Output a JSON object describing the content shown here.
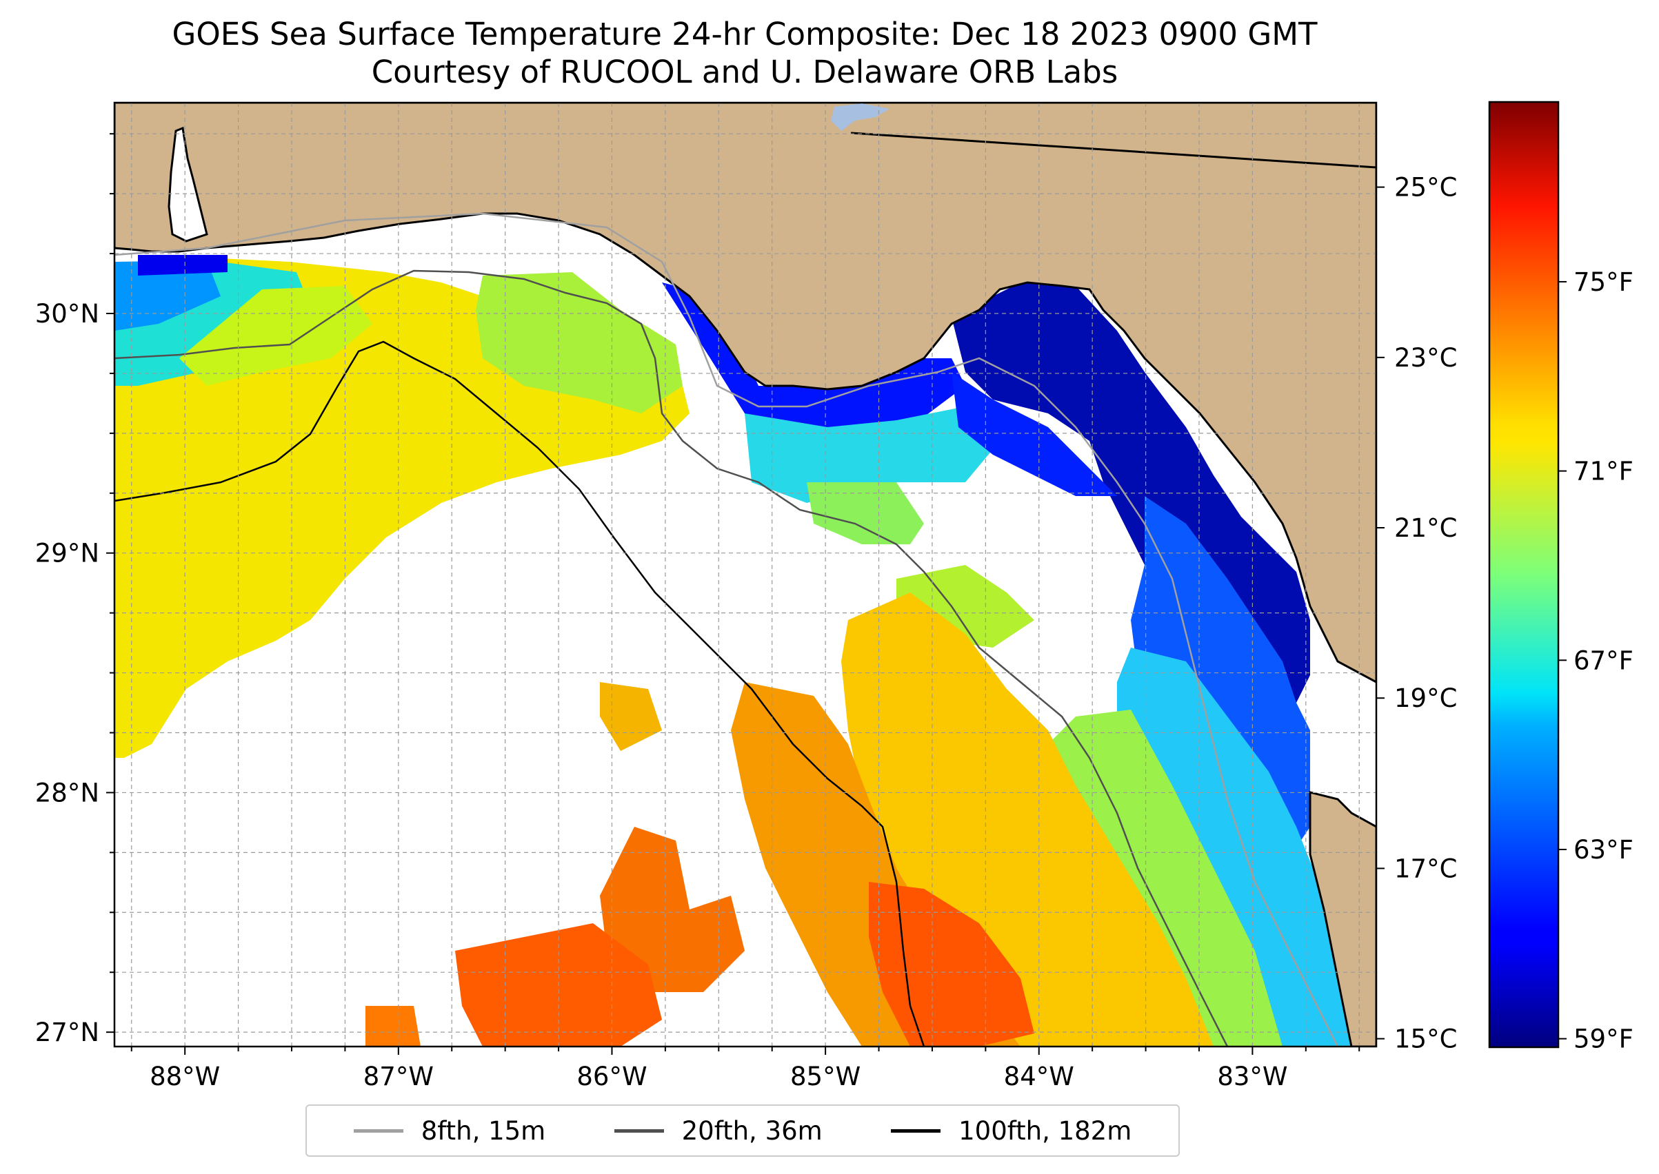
{
  "title_line1": "GOES Sea Surface Temperature 24-hr Composite: Dec 18 2023 0900 GMT",
  "title_line2": "Courtesy of RUCOOL and U. Delaware ORB Labs",
  "map": {
    "lon_range": [
      -88.33,
      -82.42
    ],
    "lat_range": [
      26.94,
      30.88
    ],
    "land_color": "#d2b48c",
    "ocean_nodata_color": "#ffffff",
    "lon_ticks": [
      {
        "value": -88,
        "label": "88°W"
      },
      {
        "value": -87,
        "label": "87°W"
      },
      {
        "value": -86,
        "label": "86°W"
      },
      {
        "value": -85,
        "label": "85°W"
      },
      {
        "value": -84,
        "label": "84°W"
      },
      {
        "value": -83,
        "label": "83°W"
      }
    ],
    "lat_ticks": [
      {
        "value": 30,
        "label": "30°N"
      },
      {
        "value": 29,
        "label": "29°N"
      },
      {
        "value": 28,
        "label": "28°N"
      },
      {
        "value": 27,
        "label": "27°N"
      }
    ],
    "grid": "dashed, 0.25° spacing"
  },
  "colorbar": {
    "colormap": "jet",
    "range_c": [
      14.9,
      26.0
    ],
    "celsius_ticks": [
      {
        "value": 25,
        "label": "25°C"
      },
      {
        "value": 23,
        "label": "23°C"
      },
      {
        "value": 21,
        "label": "21°C"
      },
      {
        "value": 19,
        "label": "19°C"
      },
      {
        "value": 17,
        "label": "17°C"
      },
      {
        "value": 15,
        "label": "15°C"
      }
    ],
    "fahrenheit_ticks": [
      {
        "value": 75,
        "label": "75°F"
      },
      {
        "value": 71,
        "label": "71°F"
      },
      {
        "value": 67,
        "label": "67°F"
      },
      {
        "value": 63,
        "label": "63°F"
      },
      {
        "value": 59,
        "label": "59°F"
      }
    ]
  },
  "legend": [
    {
      "label": "8fth, 15m",
      "color": "#a0a0a0"
    },
    {
      "label": "20fth, 36m",
      "color": "#505050"
    },
    {
      "label": "100fth, 182m",
      "color": "#000000"
    }
  ]
}
